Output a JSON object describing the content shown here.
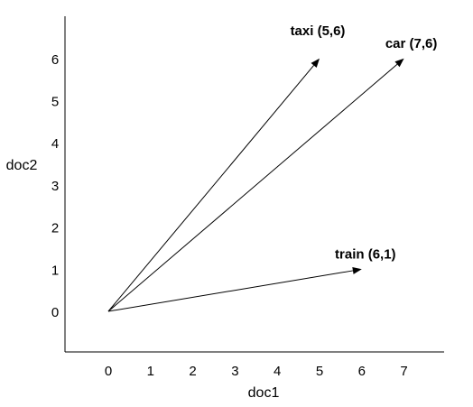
{
  "chart_data": {
    "type": "vector",
    "xlabel": "doc1",
    "ylabel": "doc2",
    "x_ticks": [
      "0",
      "1",
      "2",
      "3",
      "4",
      "5",
      "6",
      "7"
    ],
    "y_ticks": [
      "0",
      "1",
      "2",
      "3",
      "4",
      "5",
      "6"
    ],
    "origin": [
      0,
      0
    ],
    "vectors": [
      {
        "name": "taxi (5,6)",
        "x": 5,
        "y": 6
      },
      {
        "name": "car (7,6)",
        "x": 7,
        "y": 6
      },
      {
        "name": "train (6,1)",
        "x": 6,
        "y": 1
      }
    ],
    "grid": false,
    "color": "#000000"
  }
}
